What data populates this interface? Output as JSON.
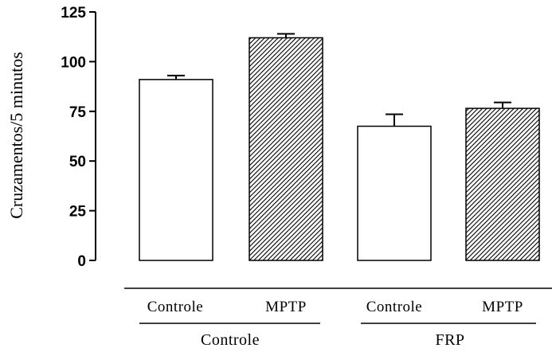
{
  "chart_data": {
    "type": "bar",
    "title": "",
    "xlabel": "",
    "ylabel": "Cruzamentos/5 minutos",
    "ylim": [
      0,
      125
    ],
    "yticks": [
      0,
      25,
      50,
      75,
      100,
      125
    ],
    "categories": [
      "Controle",
      "MPTP",
      "Controle",
      "MPTP"
    ],
    "groups": [
      {
        "label": "Controle",
        "categories": [
          0,
          1
        ]
      },
      {
        "label": "FRP",
        "categories": [
          2,
          3
        ]
      }
    ],
    "values": [
      91,
      112,
      67.5,
      76.5
    ],
    "errors": [
      2,
      2,
      6,
      3
    ],
    "fills": [
      "open",
      "hatched",
      "open",
      "hatched"
    ],
    "grid": false,
    "legend": "none"
  }
}
